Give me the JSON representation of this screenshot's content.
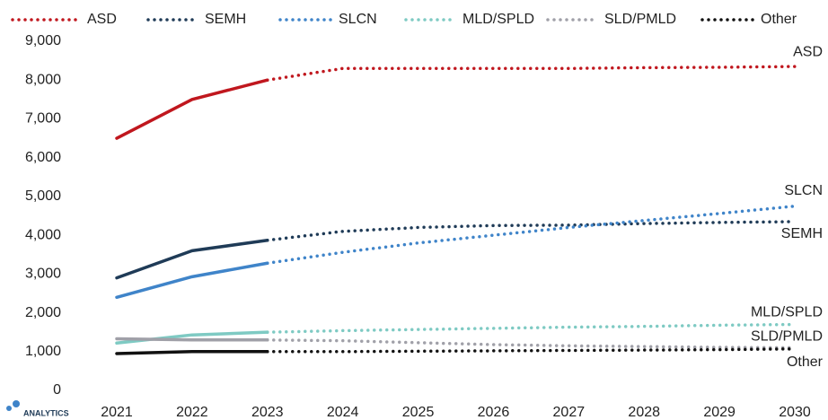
{
  "chart_data": {
    "type": "line",
    "x": [
      2021,
      2022,
      2023,
      2024,
      2025,
      2026,
      2027,
      2028,
      2029,
      2030
    ],
    "xlim": [
      2021,
      2030
    ],
    "xticks": [
      2021,
      2022,
      2023,
      2024,
      2025,
      2026,
      2027,
      2028,
      2029,
      2030
    ],
    "ylim": [
      0,
      9000
    ],
    "yticks": [
      0,
      {
        "value": 1000,
        "label": "1,000"
      },
      {
        "value": 2000,
        "label": "2,000"
      },
      {
        "value": 3000,
        "label": "3,000"
      },
      {
        "value": 4000,
        "label": "4,000"
      },
      {
        "value": 5000,
        "label": "5,000"
      },
      {
        "value": 6000,
        "label": "6,000"
      },
      {
        "value": 7000,
        "label": "7,000"
      },
      {
        "value": 8000,
        "label": "8,000"
      },
      {
        "value": 9000,
        "label": "9,000"
      }
    ],
    "grid": false,
    "forecast_from": 2023,
    "legend": "top",
    "logo": "ANALYTICS",
    "series": [
      {
        "name": "ASD",
        "color": "#c0171e",
        "values": [
          6500,
          7500,
          8000,
          8300,
          8300,
          8300,
          8300,
          8320,
          8330,
          8350
        ]
      },
      {
        "name": "SEMH",
        "color": "#1f3b57",
        "values": [
          2900,
          3600,
          3870,
          4100,
          4200,
          4250,
          4260,
          4300,
          4330,
          4350
        ]
      },
      {
        "name": "SLCN",
        "color": "#3f84c9",
        "values": [
          2400,
          2930,
          3280,
          3560,
          3800,
          4000,
          4200,
          4380,
          4560,
          4750
        ]
      },
      {
        "name": "MLD/SPLD",
        "color": "#7ecac3",
        "values": [
          1220,
          1430,
          1500,
          1540,
          1570,
          1600,
          1630,
          1650,
          1680,
          1700
        ]
      },
      {
        "name": "SLD/PMLD",
        "color": "#a0a0a8",
        "values": [
          1330,
          1300,
          1300,
          1280,
          1230,
          1180,
          1150,
          1130,
          1110,
          1100
        ]
      },
      {
        "name": "Other",
        "color": "#111111",
        "values": [
          950,
          1000,
          1000,
          1000,
          1010,
          1020,
          1030,
          1040,
          1050,
          1070
        ]
      }
    ]
  }
}
